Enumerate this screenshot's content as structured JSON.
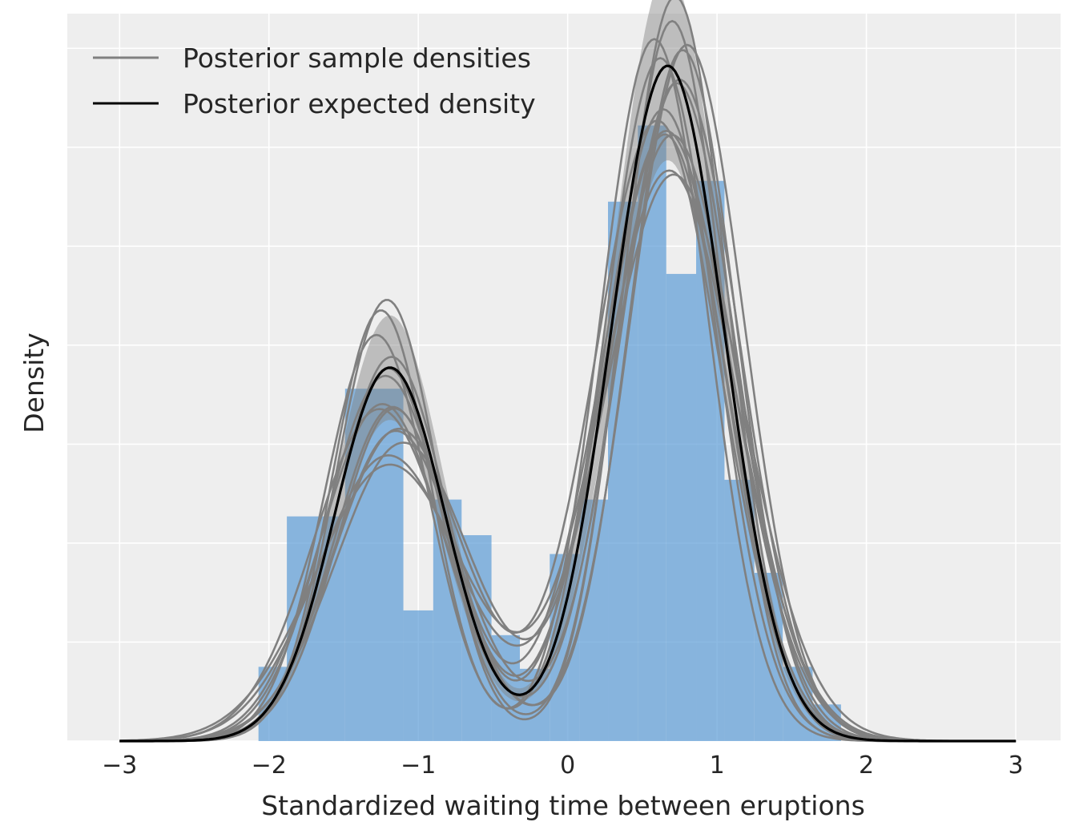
{
  "chart_data": {
    "type": "area",
    "xlabel": "Standardized waiting time between eruptions",
    "ylabel": "Density",
    "xlim": [
      -3.35,
      3.3
    ],
    "ylim": [
      0,
      0.735
    ],
    "xticks": [
      -3,
      -2,
      -1,
      0,
      1,
      2,
      3
    ],
    "xtick_labels": [
      "−3",
      "−2",
      "−1",
      "0",
      "1",
      "2",
      "3"
    ],
    "yticks": [
      0,
      0.1,
      0.2,
      0.3,
      0.4,
      0.5,
      0.6,
      0.7
    ],
    "show_ytick_labels": false,
    "grid": true,
    "background": "#eeeeee",
    "legend_position": "upper-left",
    "legend": [
      {
        "label": "Posterior sample densities",
        "color": "#808080"
      },
      {
        "label": "Posterior expected density",
        "color": "#000000"
      }
    ],
    "histogram": {
      "color": "#5b9bd5",
      "alpha": 0.7,
      "bins": [
        {
          "x0": -2.07,
          "x1": -1.88,
          "height": 0.075
        },
        {
          "x0": -1.88,
          "x1": -1.49,
          "height": 0.227
        },
        {
          "x0": -1.49,
          "x1": -1.1,
          "height": 0.356
        },
        {
          "x0": -1.1,
          "x1": -0.9,
          "height": 0.132
        },
        {
          "x0": -0.9,
          "x1": -0.71,
          "height": 0.244
        },
        {
          "x0": -0.71,
          "x1": -0.51,
          "height": 0.208
        },
        {
          "x0": -0.51,
          "x1": -0.32,
          "height": 0.107
        },
        {
          "x0": -0.32,
          "x1": -0.12,
          "height": 0.073
        },
        {
          "x0": -0.12,
          "x1": 0.08,
          "height": 0.189
        },
        {
          "x0": 0.08,
          "x1": 0.27,
          "height": 0.244
        },
        {
          "x0": 0.27,
          "x1": 0.47,
          "height": 0.545
        },
        {
          "x0": 0.47,
          "x1": 0.66,
          "height": 0.622
        },
        {
          "x0": 0.66,
          "x1": 0.86,
          "height": 0.472
        },
        {
          "x0": 0.86,
          "x1": 1.05,
          "height": 0.566
        },
        {
          "x0": 1.05,
          "x1": 1.25,
          "height": 0.264
        },
        {
          "x0": 1.25,
          "x1": 1.44,
          "height": 0.17
        },
        {
          "x0": 1.44,
          "x1": 1.64,
          "height": 0.075
        },
        {
          "x0": 1.64,
          "x1": 1.83,
          "height": 0.037
        }
      ]
    },
    "expected_density": {
      "name": "Posterior expected density",
      "color": "#000000",
      "components": [
        {
          "weight": 0.35,
          "mu": -1.19,
          "sigma": 0.37
        },
        {
          "weight": 0.65,
          "mu": 0.67,
          "sigma": 0.38
        }
      ]
    },
    "band": {
      "color": "#808080",
      "alpha": 0.45,
      "scale_low": 0.86,
      "scale_high": 1.14
    },
    "sample_densities": [
      {
        "components": [
          {
            "weight": 0.36,
            "mu": -1.25,
            "sigma": 0.33
          },
          {
            "weight": 0.64,
            "mu": 0.58,
            "sigma": 0.36
          }
        ]
      },
      {
        "components": [
          {
            "weight": 0.33,
            "mu": -1.15,
            "sigma": 0.42
          },
          {
            "weight": 0.67,
            "mu": 0.75,
            "sigma": 0.4
          }
        ]
      },
      {
        "components": [
          {
            "weight": 0.34,
            "mu": -1.2,
            "sigma": 0.36
          },
          {
            "weight": 0.66,
            "mu": 0.72,
            "sigma": 0.35
          }
        ]
      },
      {
        "components": [
          {
            "weight": 0.37,
            "mu": -1.22,
            "sigma": 0.4
          },
          {
            "weight": 0.63,
            "mu": 0.65,
            "sigma": 0.41
          }
        ]
      },
      {
        "components": [
          {
            "weight": 0.34,
            "mu": -1.1,
            "sigma": 0.45
          },
          {
            "weight": 0.66,
            "mu": 0.7,
            "sigma": 0.43
          }
        ]
      },
      {
        "components": [
          {
            "weight": 0.36,
            "mu": -1.28,
            "sigma": 0.35
          },
          {
            "weight": 0.64,
            "mu": 0.62,
            "sigma": 0.37
          }
        ]
      },
      {
        "components": [
          {
            "weight": 0.33,
            "mu": -1.17,
            "sigma": 0.39
          },
          {
            "weight": 0.67,
            "mu": 0.8,
            "sigma": 0.38
          }
        ]
      },
      {
        "components": [
          {
            "weight": 0.35,
            "mu": -1.19,
            "sigma": 0.5
          },
          {
            "weight": 0.65,
            "mu": 0.68,
            "sigma": 0.45
          }
        ]
      },
      {
        "components": [
          {
            "weight": 0.38,
            "mu": -1.21,
            "sigma": 0.34
          },
          {
            "weight": 0.62,
            "mu": 0.7,
            "sigma": 0.34
          }
        ]
      },
      {
        "components": [
          {
            "weight": 0.34,
            "mu": -1.13,
            "sigma": 0.43
          },
          {
            "weight": 0.66,
            "mu": 0.6,
            "sigma": 0.42
          }
        ]
      },
      {
        "components": [
          {
            "weight": 0.35,
            "mu": -1.24,
            "sigma": 0.41
          },
          {
            "weight": 0.65,
            "mu": 0.73,
            "sigma": 0.39
          }
        ]
      },
      {
        "components": [
          {
            "weight": 0.32,
            "mu": -1.16,
            "sigma": 0.38
          },
          {
            "weight": 0.68,
            "mu": 0.66,
            "sigma": 0.44
          }
        ]
      },
      {
        "components": [
          {
            "weight": 0.37,
            "mu": -1.26,
            "sigma": 0.44
          },
          {
            "weight": 0.63,
            "mu": 0.77,
            "sigma": 0.36
          }
        ]
      },
      {
        "components": [
          {
            "weight": 0.36,
            "mu": -1.18,
            "sigma": 0.37
          },
          {
            "weight": 0.64,
            "mu": 0.64,
            "sigma": 0.4
          }
        ]
      },
      {
        "components": [
          {
            "weight": 0.34,
            "mu": -1.2,
            "sigma": 0.47
          },
          {
            "weight": 0.66,
            "mu": 0.71,
            "sigma": 0.46
          }
        ]
      }
    ]
  }
}
